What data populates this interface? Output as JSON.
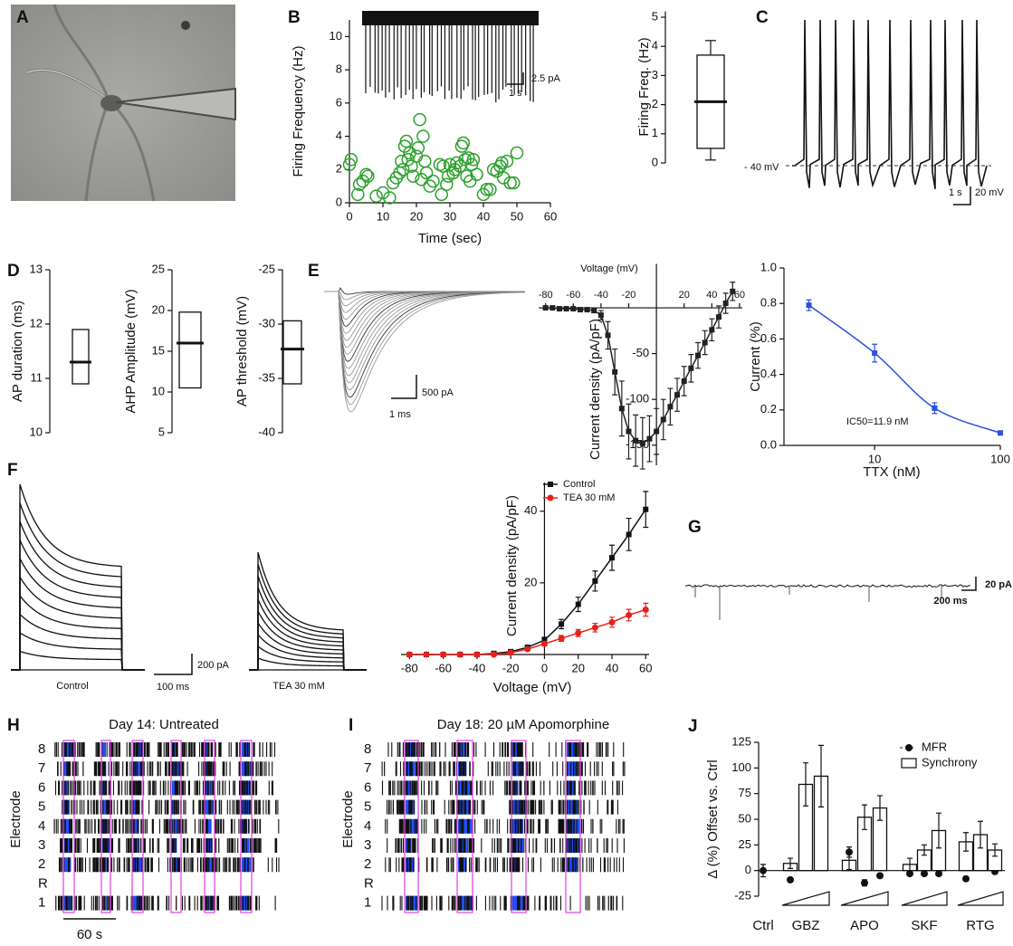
{
  "panel_labels": [
    "A",
    "B",
    "C",
    "D",
    "E",
    "F",
    "G",
    "H",
    "I",
    "J"
  ],
  "traces": {
    "B": [
      "2.5 pA",
      "1 s"
    ],
    "C": [
      "- 40 mV",
      "1 s",
      "20 mV"
    ],
    "E": [
      "500 pA",
      "1 ms"
    ],
    "F": [
      "Control",
      "TEA 30 mM",
      "200 pA",
      "100 ms"
    ],
    "G": [
      "20 pA",
      "200 ms"
    ]
  },
  "rasters": [
    {
      "title": "Day 14: Untreated",
      "ylabel": "Electrode",
      "rows": [
        "8",
        "7",
        "6",
        "5",
        "4",
        "3",
        "2",
        "R",
        "1"
      ],
      "scale": "60 s"
    },
    {
      "title": "Day 18: 20 µM Apomorphine",
      "ylabel": "Electrode",
      "rows": [
        "8",
        "7",
        "6",
        "5",
        "4",
        "3",
        "2",
        "R",
        "1"
      ]
    }
  ],
  "chart_data": [
    {
      "type": "scatter",
      "xlabel": "Time (sec)",
      "ylabel": "Firing Frequency (Hz)",
      "xlim": [
        0,
        60
      ],
      "ylim": [
        0,
        11
      ],
      "xticks": [
        0,
        10,
        20,
        30,
        40,
        50,
        60
      ],
      "yticks": [
        0,
        2,
        4,
        6,
        8,
        10
      ],
      "color": "#2ca02c",
      "x": [
        0,
        0.5,
        2.5,
        3,
        4,
        5,
        5.5,
        8,
        10,
        12,
        13,
        14,
        15,
        15.5,
        16,
        16.5,
        17,
        17.5,
        18,
        18.5,
        19,
        20,
        20.5,
        21,
        21.5,
        22,
        22.5,
        23,
        24,
        25,
        27,
        27.5,
        28,
        29,
        29.5,
        30,
        31,
        31.5,
        32,
        33,
        33.5,
        34,
        34.5,
        35,
        35.5,
        36,
        36.5,
        37,
        38,
        40,
        41,
        42,
        43,
        44,
        45,
        45.5,
        46,
        47,
        48,
        49,
        50
      ],
      "values": [
        2.3,
        2.6,
        0.5,
        1.1,
        1.3,
        1.7,
        1.6,
        0.4,
        0.6,
        0.3,
        1.2,
        1.5,
        1.8,
        2.5,
        2.0,
        3.4,
        3.7,
        2.6,
        3.0,
        2.2,
        1.6,
        2.8,
        3.3,
        5.0,
        1.4,
        4.0,
        2.5,
        1.8,
        1.0,
        1.3,
        2.3,
        0.5,
        2.2,
        1.1,
        1.6,
        2.3,
        1.8,
        2.0,
        2.4,
        2.2,
        3.4,
        3.6,
        2.6,
        1.6,
        2.7,
        1.3,
        2.3,
        2.6,
        1.7,
        0.5,
        0.8,
        0.8,
        2.0,
        1.9,
        2.2,
        2.4,
        1.5,
        2.5,
        1.2,
        1.2,
        3.0
      ]
    },
    {
      "type": "box",
      "ylabel": "Firing Freq. (Hz)",
      "ylim": [
        0,
        5.2
      ],
      "yticks": [
        0,
        1,
        2,
        3,
        4,
        5
      ],
      "whislo": 0.1,
      "q1": 0.5,
      "med": 2.1,
      "q3": 3.7,
      "whishi": 4.2
    },
    {
      "type": "box",
      "ylabel": "AP duration (ms)",
      "ylim": [
        10,
        13
      ],
      "yticks": [
        10,
        11,
        12,
        13
      ],
      "q1": 10.9,
      "med": 11.3,
      "q3": 11.9
    },
    {
      "type": "box",
      "ylabel": "AHP  Amplitude (mV)",
      "ylim": [
        5,
        25
      ],
      "yticks": [
        5,
        10,
        15,
        20,
        25
      ],
      "q1": 10.5,
      "med": 16,
      "q3": 19.8
    },
    {
      "type": "box",
      "ylabel": "AP threshold (mV)",
      "ylim": [
        -40,
        -25
      ],
      "yticks": [
        -40,
        -35,
        -30,
        -25
      ],
      "q1": -35.5,
      "med": -32.3,
      "q3": -29.7
    },
    {
      "type": "line",
      "xlabel": "Voltage (mV)",
      "ylabel": "Current density (pA/pF)",
      "xlim": [
        -85,
        62
      ],
      "ylim": [
        -172,
        48
      ],
      "xticks": [
        -80,
        -60,
        -40,
        -20,
        20,
        40,
        60
      ],
      "yticks": [
        -50,
        -100,
        -150
      ],
      "x": [
        -80,
        -75,
        -70,
        -65,
        -60,
        -55,
        -50,
        -45,
        -40,
        -35,
        -30,
        -25,
        -20,
        -15,
        -10,
        -5,
        0,
        5,
        10,
        15,
        20,
        25,
        30,
        35,
        40,
        45,
        50,
        55
      ],
      "series": [
        {
          "color": "#222222",
          "marker": "square",
          "values": [
            0,
            0,
            -1,
            -1,
            -1,
            -2,
            -2,
            -3,
            -8,
            -30,
            -70,
            -110,
            -135,
            -145,
            -148,
            -143,
            -135,
            -122,
            -108,
            -95,
            -80,
            -66,
            -52,
            -38,
            -24,
            -10,
            5,
            18
          ],
          "errors": [
            1,
            1,
            1,
            1,
            1,
            1,
            1,
            2,
            5,
            15,
            25,
            30,
            30,
            28,
            28,
            25,
            25,
            22,
            20,
            18,
            16,
            15,
            14,
            13,
            12,
            12,
            11,
            10
          ]
        }
      ]
    },
    {
      "type": "line",
      "log_x": true,
      "smooth": true,
      "xlabel": "TTX (nM)",
      "ylabel": "Current (%)",
      "annotation": "IC50=11.9 nM",
      "xlim": [
        1.9,
        100
      ],
      "xticks": [
        10,
        100
      ],
      "ylim": [
        0,
        1
      ],
      "yticks": [
        {
          "value": 0,
          "label": "0.0"
        },
        0.2,
        0.4,
        0.6,
        0.8,
        {
          "value": 1,
          "label": "1.0"
        }
      ],
      "x": [
        3,
        10,
        30,
        100
      ],
      "series": [
        {
          "color": "#2b4fe0",
          "marker": "square",
          "values": [
            0.79,
            0.52,
            0.21,
            0.07
          ],
          "errors": [
            0.03,
            0.05,
            0.03,
            0.01
          ]
        }
      ]
    },
    {
      "type": "line",
      "xlabel": "Voltage (mV)",
      "ylabel": "Current density (pA/pF)",
      "xlim": [
        -85,
        62
      ],
      "ylim": [
        0,
        48
      ],
      "xticks": [
        -80,
        -60,
        -40,
        -20,
        0,
        20,
        40,
        60
      ],
      "yticks": [
        20,
        40
      ],
      "x": [
        -80,
        -70,
        -60,
        -50,
        -40,
        -30,
        -20,
        -10,
        0,
        10,
        20,
        30,
        40,
        50,
        60
      ],
      "series": [
        {
          "name": "Control",
          "color": "#111111",
          "marker": "square",
          "values": [
            0,
            0,
            0,
            0,
            0,
            0.3,
            0.8,
            2,
            4,
            8.5,
            14,
            20.5,
            27,
            33.5,
            40.5
          ],
          "errors": [
            0,
            0,
            0,
            0,
            0,
            0.2,
            0.3,
            0.5,
            0.8,
            1.3,
            2,
            2.8,
            3.5,
            4.5,
            5
          ]
        },
        {
          "name": "TEA 30 mM",
          "color": "#e8201a",
          "marker": "circle",
          "values": [
            0,
            0,
            0,
            0,
            0,
            0,
            0.5,
            1.5,
            3,
            4.5,
            6,
            7.5,
            9,
            11,
            12.5
          ],
          "errors": [
            0,
            0,
            0,
            0,
            0,
            0,
            0.2,
            0.4,
            0.6,
            0.8,
            1,
            1.2,
            1.4,
            1.6,
            1.8
          ]
        }
      ]
    },
    {
      "type": "bar",
      "ylabel": "Δ (%) Offset vs. Ctrl",
      "ylim": [
        -25,
        125
      ],
      "yticks": [
        -25,
        0,
        25,
        50,
        75,
        100,
        125
      ],
      "categories": [
        "Ctrl",
        null,
        "GBZ",
        null,
        null,
        "APO",
        null,
        null,
        "SKF",
        null,
        null,
        "RTG",
        null
      ],
      "series": [
        {
          "name": "MFR",
          "kind": "dot",
          "color": "#111111",
          "values": [
            0,
            -9,
            13,
            31,
            18,
            -12,
            -5,
            -3,
            -3,
            -3,
            -8,
            8,
            -1
          ],
          "errors": [
            6,
            2,
            3,
            10,
            5,
            3,
            2,
            2,
            2,
            2,
            2,
            3,
            2
          ]
        },
        {
          "name": "Synchrony",
          "kind": "bar",
          "color": "#ffffff",
          "values": [
            null,
            7,
            84,
            92,
            10,
            52,
            61,
            6,
            20,
            39,
            28,
            35,
            20
          ],
          "errors": [
            null,
            5,
            21,
            30,
            9,
            12,
            12,
            6,
            5,
            17,
            9,
            13,
            6
          ]
        }
      ]
    }
  ]
}
